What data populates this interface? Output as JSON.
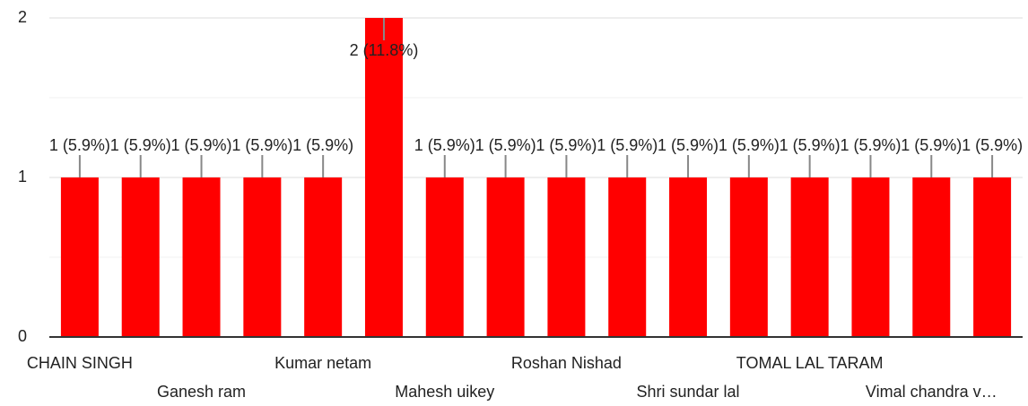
{
  "chart_data": {
    "type": "bar",
    "categories": [
      "CHAIN SINGH",
      null,
      "Ganesh ram",
      null,
      "Kumar netam",
      null,
      "Mahesh uikey",
      null,
      "Roshan Nishad",
      null,
      "Shri sundar lal",
      null,
      "TOMAL LAL TARAM",
      null,
      "Vimal chandra v…",
      null
    ],
    "values": [
      1,
      1,
      1,
      1,
      1,
      2,
      1,
      1,
      1,
      1,
      1,
      1,
      1,
      1,
      1,
      1
    ],
    "value_labels": [
      "1 (5.9%)",
      "1 (5.9%)",
      "1 (5.9%)",
      "1 (5.9%)",
      "1 (5.9%)",
      "2 (11.8%)",
      "1 (5.9%)",
      "1 (5.9%)",
      "1 (5.9%)",
      "1 (5.9%)",
      "1 (5.9%)",
      "1 (5.9%)",
      "1 (5.9%)",
      "1 (5.9%)",
      "1 (5.9%)",
      "1 (5.9%)"
    ],
    "color": "#ff0000",
    "ylim": [
      0,
      2
    ],
    "yticks": [
      0,
      1,
      2
    ],
    "minor_yticks": [
      0.5,
      1.5
    ],
    "grid": true
  }
}
